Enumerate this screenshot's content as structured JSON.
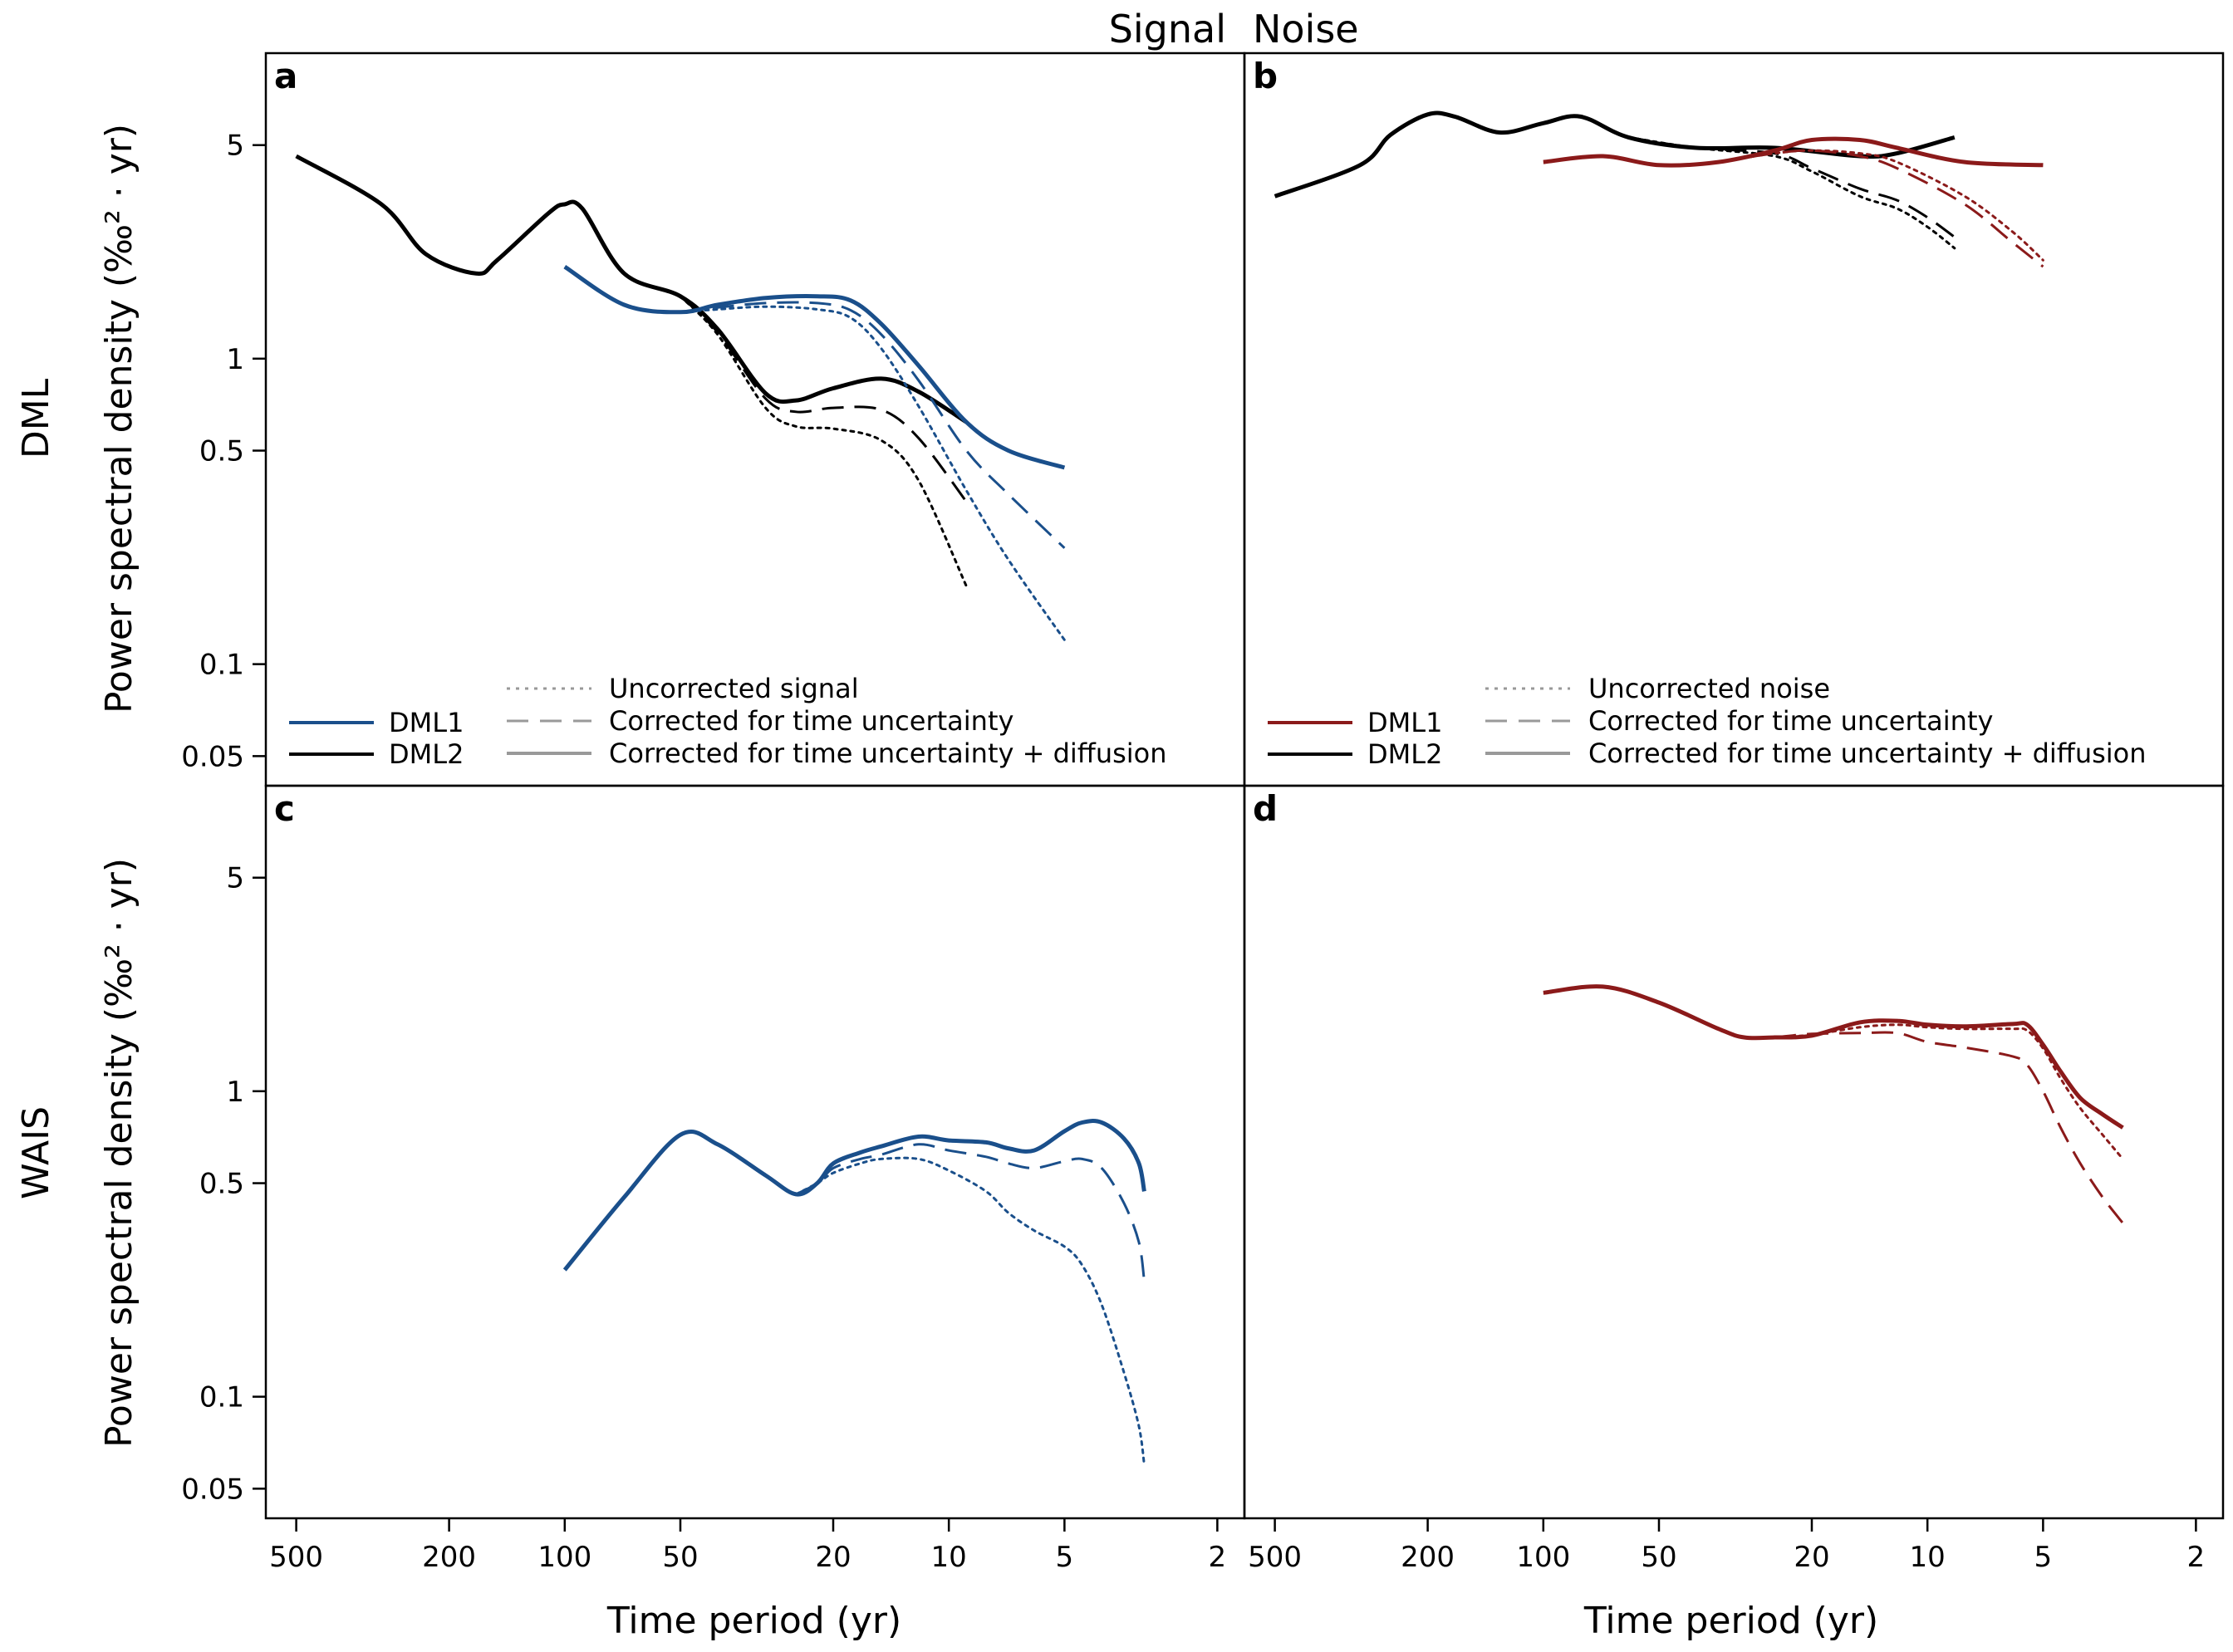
{
  "header": {
    "signal_label": "Signal",
    "noise_label": "Noise"
  },
  "colors": {
    "signal": "#1a4f8b",
    "noise": "#8b1a1a",
    "black": "#000000",
    "legend_grey": "#999999"
  },
  "rows": [
    {
      "label": "DML",
      "ylabel": "Power spectral density (‰² · yr)"
    },
    {
      "label": "WAIS",
      "ylabel": "Power spectral density (‰² · yr)"
    }
  ],
  "columns": [
    {
      "xlabel": "Time period (yr)"
    },
    {
      "xlabel": "Time period (yr)"
    }
  ],
  "axes": {
    "x_ticks": [
      500,
      200,
      100,
      50,
      20,
      10,
      5,
      2
    ],
    "x_tick_labels": [
      "500",
      "200",
      "100",
      "50",
      "20",
      "10",
      "5",
      "2"
    ],
    "y_ticks": [
      0.05,
      0.1,
      0.5,
      1,
      5
    ],
    "y_tick_labels": [
      "0.05",
      "0.1",
      "0.5",
      "1",
      "5"
    ]
  },
  "chart_data": [
    {
      "type": "line",
      "panel": "a",
      "xscale": "log-reversed",
      "yscale": "log",
      "xlim": [
        600,
        1.7
      ],
      "ylim": [
        0.04,
        10
      ],
      "legend": {
        "position": "bottom",
        "records": [
          {
            "name": "DML1",
            "color": "signal"
          },
          {
            "name": "DML2",
            "color": "black"
          }
        ],
        "styles": [
          {
            "name": "Uncorrected signal",
            "dash": "dotted"
          },
          {
            "name": "Corrected for time uncertainty",
            "dash": "dashed"
          },
          {
            "name": "Corrected for time uncertainty + diffusion",
            "dash": "solid"
          }
        ]
      },
      "series": [
        {
          "record": "DML2",
          "style": "solid",
          "color": "black",
          "x": [
            500,
            300,
            230,
            170,
            150,
            110,
            100,
            90,
            70,
            50,
            40,
            30,
            25,
            20,
            15,
            12,
            9
          ],
          "y": [
            4.6,
            3.2,
            2.2,
            1.9,
            2.1,
            3.0,
            3.2,
            3.1,
            1.9,
            1.6,
            1.25,
            0.77,
            0.73,
            0.8,
            0.86,
            0.78,
            0.62
          ]
        },
        {
          "record": "DML2",
          "style": "dashed",
          "color": "black",
          "x": [
            50,
            40,
            30,
            25,
            20,
            15,
            12,
            9
          ],
          "y": [
            1.6,
            1.22,
            0.74,
            0.67,
            0.69,
            0.68,
            0.55,
            0.34
          ]
        },
        {
          "record": "DML2",
          "style": "dotted",
          "color": "black",
          "x": [
            50,
            40,
            30,
            25,
            20,
            15,
            12,
            9
          ],
          "y": [
            1.6,
            1.2,
            0.69,
            0.6,
            0.59,
            0.54,
            0.4,
            0.18
          ]
        },
        {
          "record": "DML1",
          "style": "solid",
          "color": "signal",
          "x": [
            100,
            70,
            50,
            40,
            30,
            22,
            18,
            15,
            12,
            9,
            7,
            5
          ],
          "y": [
            2.0,
            1.5,
            1.42,
            1.5,
            1.58,
            1.6,
            1.55,
            1.3,
            0.95,
            0.62,
            0.5,
            0.44
          ]
        },
        {
          "record": "DML1",
          "style": "dashed",
          "color": "signal",
          "x": [
            50,
            40,
            30,
            22,
            18,
            15,
            12,
            9,
            7,
            5
          ],
          "y": [
            1.42,
            1.47,
            1.52,
            1.52,
            1.44,
            1.2,
            0.85,
            0.5,
            0.36,
            0.24
          ]
        },
        {
          "record": "DML1",
          "style": "dotted",
          "color": "signal",
          "x": [
            50,
            40,
            30,
            22,
            18,
            15,
            12,
            9,
            7,
            5
          ],
          "y": [
            1.42,
            1.45,
            1.48,
            1.45,
            1.36,
            1.08,
            0.7,
            0.37,
            0.22,
            0.12
          ]
        }
      ]
    },
    {
      "type": "line",
      "panel": "b",
      "xscale": "log-reversed",
      "yscale": "log",
      "xlim": [
        600,
        1.7
      ],
      "ylim": [
        0.04,
        10
      ],
      "legend": {
        "position": "bottom",
        "records": [
          {
            "name": "DML1",
            "color": "noise"
          },
          {
            "name": "DML2",
            "color": "black"
          }
        ],
        "styles": [
          {
            "name": "Uncorrected noise",
            "dash": "dotted"
          },
          {
            "name": "Corrected for time uncertainty",
            "dash": "dashed"
          },
          {
            "name": "Corrected for time uncertainty + diffusion",
            "dash": "solid"
          }
        ]
      },
      "series": [
        {
          "record": "DML2",
          "style": "solid",
          "color": "black",
          "x": [
            500,
            300,
            250,
            200,
            170,
            130,
            100,
            80,
            60,
            40,
            25,
            15,
            12,
            8.5
          ],
          "y": [
            3.4,
            4.3,
            5.4,
            6.3,
            6.2,
            5.5,
            5.9,
            6.2,
            5.3,
            4.9,
            4.9,
            4.6,
            4.7,
            5.3
          ]
        },
        {
          "record": "DML2",
          "style": "dashed",
          "color": "black",
          "x": [
            60,
            40,
            25,
            20,
            15,
            12,
            10,
            8.5
          ],
          "y": [
            5.3,
            4.9,
            4.7,
            4.2,
            3.6,
            3.3,
            2.9,
            2.5
          ]
        },
        {
          "record": "DML2",
          "style": "dotted",
          "color": "black",
          "x": [
            60,
            40,
            25,
            20,
            15,
            12,
            10,
            8.5
          ],
          "y": [
            5.3,
            4.9,
            4.6,
            4.1,
            3.4,
            3.1,
            2.7,
            2.3
          ]
        },
        {
          "record": "DML1",
          "style": "solid",
          "color": "noise",
          "x": [
            100,
            70,
            50,
            35,
            25,
            20,
            15,
            12,
            8,
            5
          ],
          "y": [
            4.4,
            4.6,
            4.3,
            4.4,
            4.8,
            5.2,
            5.2,
            4.9,
            4.4,
            4.3
          ]
        },
        {
          "record": "DML1",
          "style": "dashed",
          "color": "noise",
          "x": [
            35,
            25,
            20,
            15,
            12,
            8,
            6,
            5
          ],
          "y": [
            4.4,
            4.7,
            4.8,
            4.6,
            4.2,
            3.2,
            2.4,
            2.0
          ]
        },
        {
          "record": "DML1",
          "style": "dotted",
          "color": "noise",
          "x": [
            35,
            25,
            20,
            15,
            12,
            8,
            6,
            5
          ],
          "y": [
            4.4,
            4.7,
            4.8,
            4.7,
            4.4,
            3.4,
            2.6,
            2.1
          ]
        }
      ]
    },
    {
      "type": "line",
      "panel": "c",
      "xscale": "log-reversed",
      "yscale": "log",
      "xlim": [
        600,
        1.7
      ],
      "ylim": [
        0.04,
        10
      ],
      "series": [
        {
          "record": "WAIS",
          "style": "solid",
          "color": "signal",
          "x": [
            100,
            70,
            50,
            40,
            30,
            25,
            22,
            20,
            17,
            15,
            12,
            10,
            8,
            7,
            6,
            5,
            4.5,
            4,
            3.5,
            3.2,
            3.1
          ],
          "y": [
            0.26,
            0.45,
            0.72,
            0.67,
            0.53,
            0.46,
            0.5,
            0.58,
            0.63,
            0.66,
            0.71,
            0.69,
            0.68,
            0.65,
            0.64,
            0.74,
            0.79,
            0.79,
            0.7,
            0.58,
            0.47
          ]
        },
        {
          "record": "WAIS",
          "style": "dashed",
          "color": "signal",
          "x": [
            25,
            22,
            20,
            17,
            15,
            12,
            10,
            8,
            7,
            6,
            5,
            4.5,
            4,
            3.5,
            3.2,
            3.1
          ],
          "y": [
            0.46,
            0.5,
            0.56,
            0.6,
            0.62,
            0.67,
            0.64,
            0.61,
            0.58,
            0.56,
            0.59,
            0.6,
            0.56,
            0.43,
            0.32,
            0.24
          ]
        },
        {
          "record": "WAIS",
          "style": "dotted",
          "color": "signal",
          "x": [
            25,
            22,
            20,
            17,
            15,
            12,
            10,
            8,
            7,
            6,
            5,
            4.5,
            4,
            3.5,
            3.2,
            3.1
          ],
          "y": [
            0.46,
            0.5,
            0.54,
            0.58,
            0.6,
            0.6,
            0.55,
            0.47,
            0.4,
            0.35,
            0.31,
            0.27,
            0.2,
            0.12,
            0.08,
            0.06
          ]
        }
      ]
    },
    {
      "type": "line",
      "panel": "d",
      "xscale": "log-reversed",
      "yscale": "log",
      "xlim": [
        600,
        1.7
      ],
      "ylim": [
        0.04,
        10
      ],
      "series": [
        {
          "record": "WAIS",
          "style": "solid",
          "color": "noise",
          "x": [
            100,
            70,
            50,
            35,
            30,
            25,
            20,
            15,
            12,
            10,
            8,
            6,
            5.5,
            5,
            4.5,
            4,
            3.5,
            3.1
          ],
          "y": [
            2.1,
            2.2,
            1.95,
            1.6,
            1.5,
            1.5,
            1.52,
            1.68,
            1.7,
            1.65,
            1.63,
            1.66,
            1.65,
            1.42,
            1.16,
            0.95,
            0.84,
            0.76
          ]
        },
        {
          "record": "WAIS",
          "style": "dashed",
          "color": "noise",
          "x": [
            25,
            20,
            15,
            12,
            10,
            8,
            6,
            5.5,
            5,
            4.5,
            4,
            3.5,
            3.1
          ],
          "y": [
            1.5,
            1.54,
            1.55,
            1.55,
            1.45,
            1.39,
            1.3,
            1.22,
            1.0,
            0.76,
            0.58,
            0.45,
            0.37
          ]
        },
        {
          "record": "WAIS",
          "style": "dotted",
          "color": "noise",
          "x": [
            25,
            20,
            15,
            12,
            10,
            8,
            6,
            5.5,
            5,
            4.5,
            4,
            3.5,
            3.1
          ],
          "y": [
            1.5,
            1.53,
            1.62,
            1.65,
            1.62,
            1.6,
            1.6,
            1.58,
            1.38,
            1.1,
            0.88,
            0.72,
            0.6
          ]
        }
      ]
    }
  ]
}
